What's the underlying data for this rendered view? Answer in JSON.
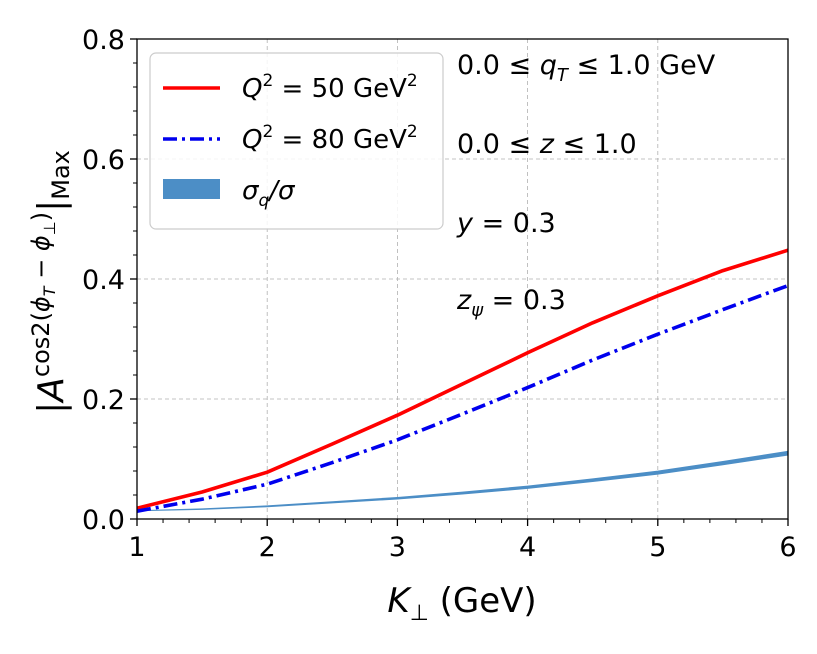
{
  "chart_data": {
    "type": "line",
    "xlabel": "K⊥ (GeV)",
    "ylabel": "|A^cos2(φT − φ⊥)|Max",
    "xlim": [
      1,
      6
    ],
    "ylim": [
      0.0,
      0.8
    ],
    "xticks": [
      1,
      2,
      3,
      4,
      5,
      6
    ],
    "yticks": [
      0.0,
      0.2,
      0.4,
      0.6,
      0.8
    ],
    "xtick_labels": [
      "1",
      "2",
      "3",
      "4",
      "5",
      "6"
    ],
    "ytick_labels": [
      "0.0",
      "0.2",
      "0.4",
      "0.6",
      "0.8"
    ],
    "grid": true,
    "legend_position": "upper-left",
    "series": [
      {
        "name": "Q² = 50 GeV²",
        "style": "solid",
        "color": "#ff0000",
        "x": [
          1.0,
          1.5,
          2.0,
          2.5,
          3.0,
          3.5,
          4.0,
          4.5,
          5.0,
          5.5,
          6.0
        ],
        "values": [
          0.018,
          0.045,
          0.078,
          0.125,
          0.173,
          0.225,
          0.277,
          0.327,
          0.372,
          0.414,
          0.448
        ]
      },
      {
        "name": "Q² = 80 GeV²",
        "style": "dashdot",
        "color": "#0000ee",
        "x": [
          1.0,
          1.5,
          2.0,
          2.5,
          3.0,
          3.5,
          4.0,
          4.5,
          5.0,
          5.5,
          6.0
        ],
        "values": [
          0.013,
          0.033,
          0.058,
          0.094,
          0.132,
          0.175,
          0.219,
          0.265,
          0.308,
          0.349,
          0.389
        ]
      },
      {
        "name": "σq/σ",
        "style": "band",
        "color": "#4c8ec6",
        "x": [
          1.0,
          1.5,
          2.0,
          2.5,
          3.0,
          3.5,
          4.0,
          4.5,
          5.0,
          5.5,
          6.0
        ],
        "values": [
          0.014,
          0.017,
          0.022,
          0.029,
          0.036,
          0.045,
          0.055,
          0.067,
          0.08,
          0.096,
          0.113
        ]
      }
    ],
    "annotations": [
      {
        "id": "qt",
        "text": "0.0 ≤ q_T ≤ 1.0 GeV"
      },
      {
        "id": "z",
        "text": "0.0 ≤ z ≤ 1.0"
      },
      {
        "id": "y",
        "text": "y = 0.3"
      },
      {
        "id": "zpsi",
        "text": "z_ψ = 0.3"
      }
    ]
  }
}
